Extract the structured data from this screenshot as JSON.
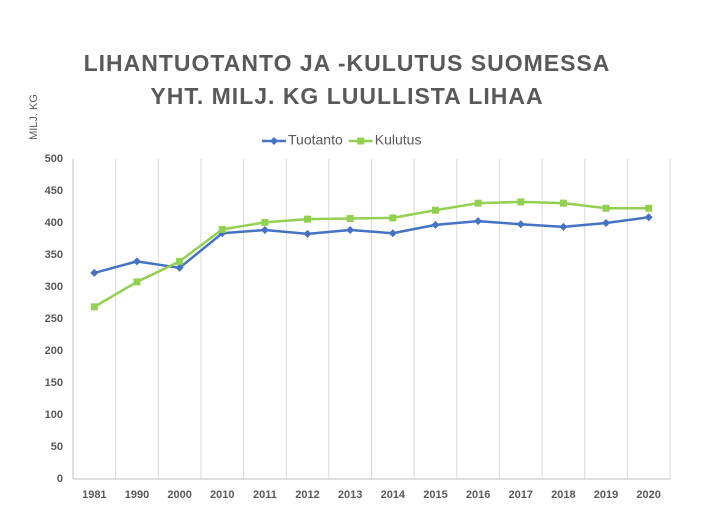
{
  "chart_data": {
    "type": "line",
    "title": [
      "LIHANTUOTANTO JA -KULUTUS SUOMESSA",
      "YHT. MILJ. KG LUULLISTA LIHAA"
    ],
    "y_label": "MILJ. KG",
    "categories": [
      "1981",
      "1990",
      "2000",
      "2010",
      "2011",
      "2012",
      "2013",
      "2014",
      "2015",
      "2016",
      "2017",
      "2018",
      "2019",
      "2020"
    ],
    "series": [
      {
        "name": "Tuotanto",
        "color": "#4472c4",
        "marker": "diamond",
        "values": [
          322,
          340,
          330,
          384,
          389,
          383,
          389,
          384,
          397,
          403,
          398,
          394,
          400,
          409
        ]
      },
      {
        "name": "Kulutus",
        "color": "#92d050",
        "marker": "square",
        "values": [
          269,
          308,
          340,
          390,
          401,
          406,
          407,
          408,
          420,
          431,
          433,
          431,
          423,
          423
        ]
      }
    ],
    "ylim": [
      0,
      500
    ],
    "yticks": [
      0,
      50,
      100,
      150,
      200,
      250,
      300,
      350,
      400,
      450,
      500
    ],
    "grid": false,
    "x_grid": true,
    "legend": "top"
  }
}
